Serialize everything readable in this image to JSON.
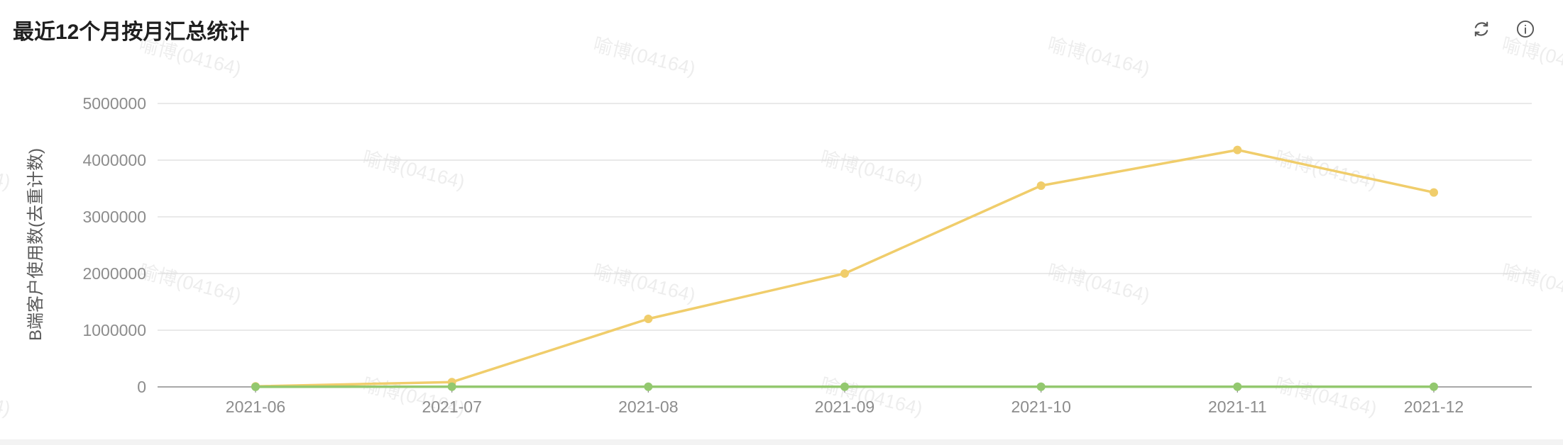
{
  "header": {
    "title": "最近12个月按月汇总统计",
    "refresh_icon": "refresh-icon",
    "info_icon": "info-icon"
  },
  "watermark": "喻博(04164)",
  "chart_data": {
    "type": "line",
    "title": "最近12个月按月汇总统计",
    "xlabel": "",
    "ylabel": "B端客户使用数(去重计数)",
    "categories": [
      "2021-06",
      "2021-07",
      "2021-08",
      "2021-09",
      "2021-10",
      "2021-11",
      "2021-12"
    ],
    "y_ticks": [
      0,
      1000000,
      2000000,
      3000000,
      4000000,
      5000000
    ],
    "ylim": [
      0,
      5000000
    ],
    "grid": true,
    "legend": "none",
    "series": [
      {
        "color": "#f0cd6b",
        "values": [
          10000,
          85000,
          1200000,
          2000000,
          3550000,
          4180000,
          3430000
        ]
      },
      {
        "color": "#93c86f",
        "values": [
          2000,
          3000,
          3000,
          3000,
          3000,
          3000,
          3000
        ]
      }
    ]
  }
}
